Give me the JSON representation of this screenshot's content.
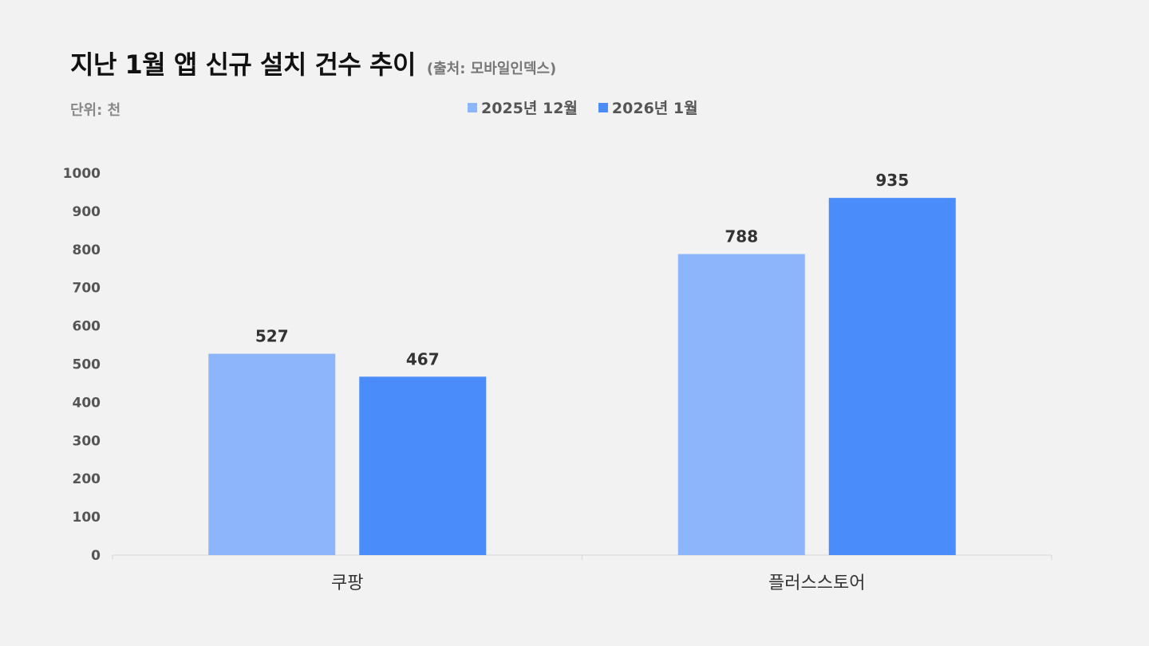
{
  "header": {
    "title": "지난 1월 앱 신규 설치 건수 추이",
    "source": "(출처: 모바일인덱스)",
    "unit": "단위: 천"
  },
  "legend": [
    {
      "label": "2025년 12월",
      "color": "#8db5fb"
    },
    {
      "label": "2026년 1월",
      "color": "#4a8cf9"
    }
  ],
  "chart_data": {
    "type": "bar",
    "categories": [
      "쿠팡",
      "플러스스토어"
    ],
    "series": [
      {
        "name": "2025년 12월",
        "values": [
          527,
          788
        ],
        "color": "#8db5fb"
      },
      {
        "name": "2026년 1월",
        "values": [
          467,
          935
        ],
        "color": "#4a8cf9"
      }
    ],
    "ylim": [
      0,
      1000
    ],
    "yticks": [
      0,
      100,
      200,
      300,
      400,
      500,
      600,
      700,
      800,
      900,
      1000
    ],
    "grid": false,
    "legend_position": "top-center"
  }
}
